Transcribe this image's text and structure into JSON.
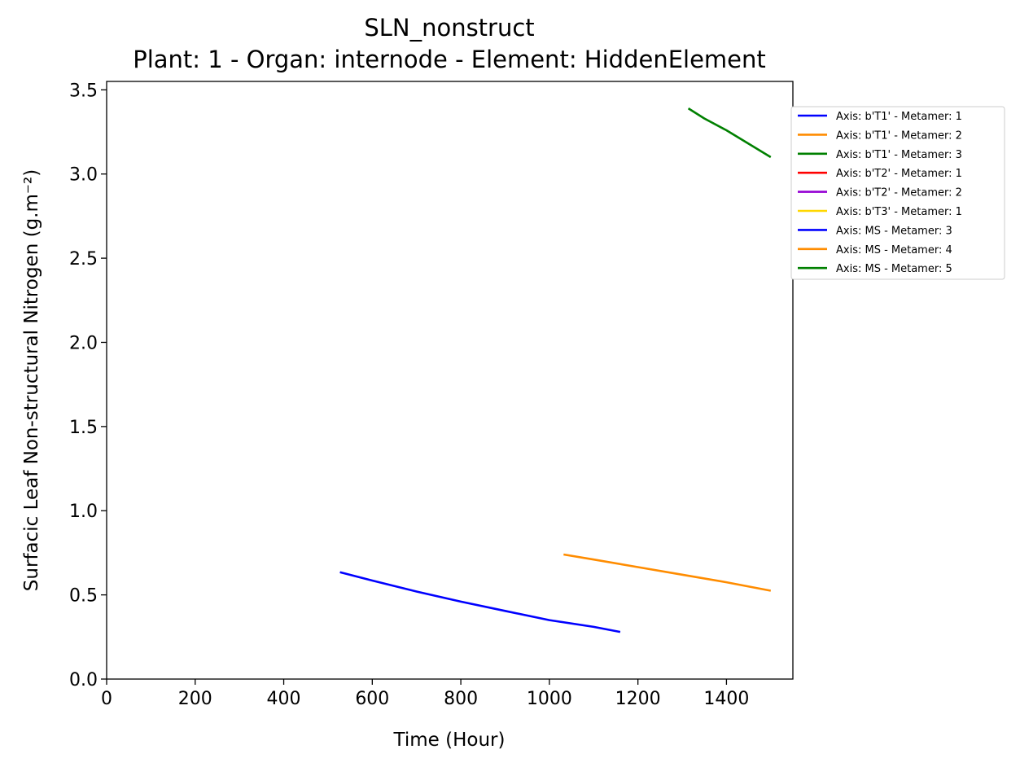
{
  "chart_data": {
    "type": "line",
    "title": "SLN_nonstruct",
    "subtitle": "Plant: 1 - Organ: internode - Element: HiddenElement",
    "xlabel": "Time (Hour)",
    "ylabel": "Surfacic Leaf Non-structural Nitrogen (g.m⁻²)",
    "xlim": [
      0,
      1550
    ],
    "ylim": [
      0,
      3.55
    ],
    "xticks": [
      0,
      200,
      400,
      600,
      800,
      1000,
      1200,
      1400
    ],
    "xtick_labels": [
      "0",
      "200",
      "400",
      "600",
      "800",
      "1000",
      "1200",
      "1400"
    ],
    "yticks": [
      0,
      0.5,
      1.0,
      1.5,
      2.0,
      2.5,
      3.0,
      3.5
    ],
    "ytick_labels": [
      "0.0",
      "0.5",
      "1.0",
      "1.5",
      "2.0",
      "2.5",
      "3.0",
      "3.5"
    ],
    "grid": false,
    "legend_position": "outside-top-right",
    "series": [
      {
        "name": "Axis: b'T1' - Metamer: 1",
        "color": "#0000ff",
        "x": [
          527,
          600,
          700,
          800,
          900,
          1000,
          1100,
          1160
        ],
        "y": [
          0.635,
          0.585,
          0.52,
          0.46,
          0.405,
          0.35,
          0.31,
          0.28
        ]
      },
      {
        "name": "Axis: b'T1' - Metamer: 2",
        "color": "#ff8c00",
        "x": [
          1032,
          1100,
          1200,
          1300,
          1400,
          1500
        ],
        "y": [
          0.74,
          0.71,
          0.665,
          0.62,
          0.575,
          0.525
        ]
      },
      {
        "name": "Axis: b'T1' - Metamer: 3",
        "color": "#008000",
        "x": [
          1314,
          1350,
          1400,
          1450,
          1500
        ],
        "y": [
          3.39,
          3.33,
          3.26,
          3.18,
          3.1
        ]
      },
      {
        "name": "Axis: b'T2' - Metamer: 1",
        "color": "#ff0000",
        "x": [],
        "y": []
      },
      {
        "name": "Axis: b'T2' - Metamer: 2",
        "color": "#9400d3",
        "x": [],
        "y": []
      },
      {
        "name": "Axis: b'T3' - Metamer: 1",
        "color": "#ffd700",
        "x": [],
        "y": []
      },
      {
        "name": "Axis: MS - Metamer: 3",
        "color": "#0000ff",
        "x": [],
        "y": []
      },
      {
        "name": "Axis: MS - Metamer: 4",
        "color": "#ff8c00",
        "x": [],
        "y": []
      },
      {
        "name": "Axis: MS - Metamer: 5",
        "color": "#008000",
        "x": [],
        "y": []
      }
    ]
  }
}
